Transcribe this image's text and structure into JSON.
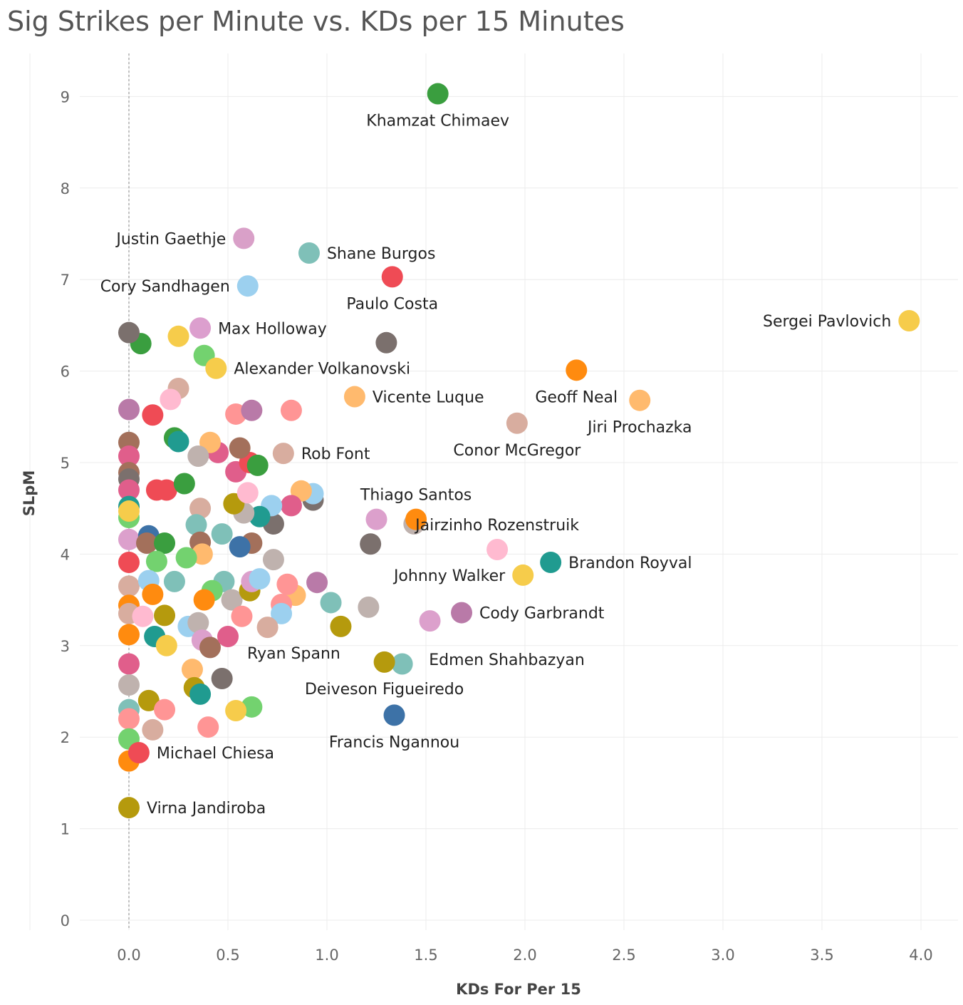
{
  "chart_data": {
    "type": "scatter",
    "title": "Sig Strikes per Minute vs. KDs per 15 Minutes",
    "xlabel": "KDs For Per 15",
    "ylabel": "SLpM",
    "xlim": [
      -0.25,
      4.2
    ],
    "ylim": [
      -0.1,
      9.6
    ],
    "xticks": [
      "0.0",
      "0.5",
      "1.0",
      "1.5",
      "2.0",
      "2.5",
      "3.0",
      "3.5",
      "4.0"
    ],
    "xtick_values": [
      0,
      0.5,
      1.0,
      1.5,
      2.0,
      2.5,
      3.0,
      3.5,
      4.0
    ],
    "yticks": [
      "0",
      "1",
      "2",
      "3",
      "4",
      "5",
      "6",
      "7",
      "8",
      "9"
    ],
    "ytick_values": [
      0,
      1,
      2,
      3,
      4,
      5,
      6,
      7,
      8,
      9
    ],
    "grid": true,
    "reference_line_x": 0,
    "points": [
      {
        "x": 1.56,
        "y": 9.03,
        "color": "#3a9e3f",
        "label": "Khamzat Chimaev",
        "pos": "below"
      },
      {
        "x": 0.58,
        "y": 7.45,
        "color": "#d9a0c8",
        "label": "Justin Gaethje",
        "pos": "left"
      },
      {
        "x": 0.91,
        "y": 7.29,
        "color": "#7fc0b8",
        "label": "Shane Burgos",
        "pos": "right"
      },
      {
        "x": 1.33,
        "y": 7.03,
        "color": "#ef4b55",
        "label": "Paulo Costa",
        "pos": "below"
      },
      {
        "x": 0.6,
        "y": 6.93,
        "color": "#9cd0ef",
        "label": "Cory Sandhagen",
        "pos": "left"
      },
      {
        "x": 3.94,
        "y": 6.55,
        "color": "#f6cc4b",
        "label": "Sergei Pavlovich",
        "pos": "left"
      },
      {
        "x": 0.36,
        "y": 6.47,
        "color": "#dc9fce",
        "label": "Max Holloway",
        "pos": "right"
      },
      {
        "x": 0.44,
        "y": 6.03,
        "color": "#f6cc4b",
        "label": "Alexander Volkanovski",
        "pos": "right"
      },
      {
        "x": 2.26,
        "y": 6.01,
        "color": "#ff8b0f",
        "label": "Geoff Neal",
        "pos": "below"
      },
      {
        "x": 1.14,
        "y": 5.72,
        "color": "#ffba6e",
        "label": "Vicente Luque",
        "pos": "right"
      },
      {
        "x": 2.58,
        "y": 5.68,
        "color": "#ffba6e",
        "label": "Jiri Prochazka",
        "pos": "below"
      },
      {
        "x": 1.96,
        "y": 5.43,
        "color": "#d8ad9f",
        "label": "Conor McGregor",
        "pos": "below"
      },
      {
        "x": 0.78,
        "y": 5.1,
        "color": "#d8ad9f",
        "label": "Rob Font",
        "pos": "right"
      },
      {
        "x": 1.45,
        "y": 4.38,
        "color": "#ff8b0f",
        "label": "Thiago Santos",
        "pos": "above"
      },
      {
        "x": 1.86,
        "y": 4.05,
        "color": "#ffbad0",
        "label": "Jairzinho Rozenstruik",
        "pos": "above"
      },
      {
        "x": 2.13,
        "y": 3.91,
        "color": "#209b90",
        "label": "Brandon Royval",
        "pos": "right"
      },
      {
        "x": 1.99,
        "y": 3.77,
        "color": "#f6cc4b",
        "label": "Johnny Walker",
        "pos": "left"
      },
      {
        "x": 1.68,
        "y": 3.36,
        "color": "#b97aa8",
        "label": "Cody Garbrandt",
        "pos": "right"
      },
      {
        "x": 1.52,
        "y": 3.27,
        "color": "#dca0cc",
        "label": "Edmen Shahbazyan",
        "pos": "belowright"
      },
      {
        "x": 1.38,
        "y": 2.8,
        "color": "#7fc0b8",
        "label": "",
        "pos": ""
      },
      {
        "x": 1.29,
        "y": 2.82,
        "color": "#b59a0d",
        "label": "Deiveson Figueiredo",
        "pos": "below"
      },
      {
        "x": 1.34,
        "y": 2.24,
        "color": "#3d72a7",
        "label": "Francis Ngannou",
        "pos": "below"
      },
      {
        "x": 1.07,
        "y": 3.21,
        "color": "#b59a0d",
        "label": "Ryan Spann",
        "pos": "belowleft"
      },
      {
        "x": 0.05,
        "y": 1.83,
        "color": "#ef4b55",
        "label": "Michael Chiesa",
        "pos": "right"
      },
      {
        "x": 0.0,
        "y": 1.74,
        "color": "#ff8b0f",
        "label": "",
        "pos": ""
      },
      {
        "x": 0.0,
        "y": 1.23,
        "color": "#b59a0d",
        "label": "Virna Jandiroba",
        "pos": "right"
      },
      {
        "x": 1.3,
        "y": 6.31,
        "color": "#7b706d",
        "label": "",
        "pos": ""
      },
      {
        "x": 1.22,
        "y": 4.11,
        "color": "#7b706d",
        "label": "",
        "pos": ""
      },
      {
        "x": 1.25,
        "y": 4.38,
        "color": "#dca0cc",
        "label": "",
        "pos": ""
      },
      {
        "x": 1.44,
        "y": 4.33,
        "color": "#bfb2ae",
        "label": "",
        "pos": ""
      },
      {
        "x": 1.21,
        "y": 3.42,
        "color": "#bfb2ae",
        "label": "",
        "pos": ""
      },
      {
        "x": 1.02,
        "y": 3.47,
        "color": "#7fc0b8",
        "label": "",
        "pos": ""
      },
      {
        "x": 0.95,
        "y": 3.69,
        "color": "#b97aa8",
        "label": "",
        "pos": ""
      },
      {
        "x": 0.93,
        "y": 4.59,
        "color": "#7b706d",
        "label": "",
        "pos": ""
      },
      {
        "x": 0.93,
        "y": 4.66,
        "color": "#9cd0ef",
        "label": "",
        "pos": ""
      },
      {
        "x": 0.87,
        "y": 4.69,
        "color": "#ffba6e",
        "label": "",
        "pos": ""
      },
      {
        "x": 0.82,
        "y": 4.53,
        "color": "#e05e8b",
        "label": "",
        "pos": ""
      },
      {
        "x": 0.82,
        "y": 5.57,
        "color": "#ff9595",
        "label": "",
        "pos": ""
      },
      {
        "x": 0.84,
        "y": 3.55,
        "color": "#ffba6e",
        "label": "",
        "pos": ""
      },
      {
        "x": 0.8,
        "y": 3.67,
        "color": "#ff9595",
        "label": "",
        "pos": ""
      },
      {
        "x": 0.77,
        "y": 3.45,
        "color": "#ff9595",
        "label": "",
        "pos": ""
      },
      {
        "x": 0.77,
        "y": 3.35,
        "color": "#9cd0ef",
        "label": "",
        "pos": ""
      },
      {
        "x": 0.7,
        "y": 3.2,
        "color": "#d8ad9f",
        "label": "",
        "pos": ""
      },
      {
        "x": 0.73,
        "y": 3.94,
        "color": "#bfb2ae",
        "label": "",
        "pos": ""
      },
      {
        "x": 0.73,
        "y": 4.33,
        "color": "#7b706d",
        "label": "",
        "pos": ""
      },
      {
        "x": 0.72,
        "y": 4.53,
        "color": "#9cd0ef",
        "label": "",
        "pos": ""
      },
      {
        "x": 0.66,
        "y": 4.41,
        "color": "#209b90",
        "label": "",
        "pos": ""
      },
      {
        "x": 0.62,
        "y": 4.12,
        "color": "#a3705b",
        "label": "",
        "pos": ""
      },
      {
        "x": 0.58,
        "y": 4.45,
        "color": "#bfb2ae",
        "label": "",
        "pos": ""
      },
      {
        "x": 0.56,
        "y": 4.08,
        "color": "#3d72a7",
        "label": "",
        "pos": ""
      },
      {
        "x": 0.53,
        "y": 4.55,
        "color": "#b59a0d",
        "label": "",
        "pos": ""
      },
      {
        "x": 0.6,
        "y": 4.67,
        "color": "#ffbad0",
        "label": "",
        "pos": ""
      },
      {
        "x": 0.54,
        "y": 4.9,
        "color": "#e05e8b",
        "label": "",
        "pos": ""
      },
      {
        "x": 0.61,
        "y": 5.0,
        "color": "#ef4b55",
        "label": "",
        "pos": ""
      },
      {
        "x": 0.65,
        "y": 4.97,
        "color": "#3a9e3f",
        "label": "",
        "pos": ""
      },
      {
        "x": 0.56,
        "y": 5.16,
        "color": "#a3705b",
        "label": "",
        "pos": ""
      },
      {
        "x": 0.54,
        "y": 5.53,
        "color": "#ff9595",
        "label": "",
        "pos": ""
      },
      {
        "x": 0.62,
        "y": 5.57,
        "color": "#b97aa8",
        "label": "",
        "pos": ""
      },
      {
        "x": 0.45,
        "y": 5.11,
        "color": "#e05e8b",
        "label": "",
        "pos": ""
      },
      {
        "x": 0.41,
        "y": 5.22,
        "color": "#ffba6e",
        "label": "",
        "pos": ""
      },
      {
        "x": 0.35,
        "y": 5.07,
        "color": "#bfb2ae",
        "label": "",
        "pos": ""
      },
      {
        "x": 0.38,
        "y": 6.17,
        "color": "#73d26f",
        "label": "",
        "pos": ""
      },
      {
        "x": 0.25,
        "y": 6.38,
        "color": "#f6cc4b",
        "label": "",
        "pos": ""
      },
      {
        "x": 0.25,
        "y": 5.81,
        "color": "#d8ad9f",
        "label": "",
        "pos": ""
      },
      {
        "x": 0.21,
        "y": 5.69,
        "color": "#ffbad0",
        "label": "",
        "pos": ""
      },
      {
        "x": 0.23,
        "y": 5.27,
        "color": "#3a9e3f",
        "label": "",
        "pos": ""
      },
      {
        "x": 0.25,
        "y": 5.23,
        "color": "#209b90",
        "label": "",
        "pos": ""
      },
      {
        "x": 0.12,
        "y": 5.52,
        "color": "#ef4b55",
        "label": "",
        "pos": ""
      },
      {
        "x": 0.06,
        "y": 6.3,
        "color": "#3a9e3f",
        "label": "",
        "pos": ""
      },
      {
        "x": 0.0,
        "y": 6.42,
        "color": "#7b706d",
        "label": "",
        "pos": ""
      },
      {
        "x": 0.0,
        "y": 5.58,
        "color": "#b97aa8",
        "label": "",
        "pos": ""
      },
      {
        "x": 0.0,
        "y": 5.22,
        "color": "#a3705b",
        "label": "",
        "pos": ""
      },
      {
        "x": 0.0,
        "y": 5.07,
        "color": "#e05e8b",
        "label": "",
        "pos": ""
      },
      {
        "x": 0.0,
        "y": 4.89,
        "color": "#a3705b",
        "label": "",
        "pos": ""
      },
      {
        "x": 0.0,
        "y": 4.82,
        "color": "#7b706d",
        "label": "",
        "pos": ""
      },
      {
        "x": 0.0,
        "y": 4.7,
        "color": "#e05e8b",
        "label": "",
        "pos": ""
      },
      {
        "x": 0.0,
        "y": 4.52,
        "color": "#209b90",
        "label": "",
        "pos": ""
      },
      {
        "x": 0.0,
        "y": 4.4,
        "color": "#73d26f",
        "label": "",
        "pos": ""
      },
      {
        "x": 0.0,
        "y": 4.47,
        "color": "#f6cc4b",
        "label": "",
        "pos": ""
      },
      {
        "x": 0.0,
        "y": 4.16,
        "color": "#dca0cc",
        "label": "",
        "pos": ""
      },
      {
        "x": 0.0,
        "y": 3.91,
        "color": "#ef4b55",
        "label": "",
        "pos": ""
      },
      {
        "x": 0.0,
        "y": 3.65,
        "color": "#d8ad9f",
        "label": "",
        "pos": ""
      },
      {
        "x": 0.0,
        "y": 3.44,
        "color": "#ff8b0f",
        "label": "",
        "pos": ""
      },
      {
        "x": 0.0,
        "y": 3.35,
        "color": "#d8ad9f",
        "label": "",
        "pos": ""
      },
      {
        "x": 0.0,
        "y": 3.12,
        "color": "#ff8b0f",
        "label": "",
        "pos": ""
      },
      {
        "x": 0.0,
        "y": 2.8,
        "color": "#e05e8b",
        "label": "",
        "pos": ""
      },
      {
        "x": 0.0,
        "y": 2.57,
        "color": "#bfb2ae",
        "label": "",
        "pos": ""
      },
      {
        "x": 0.0,
        "y": 2.3,
        "color": "#7fc0b8",
        "label": "",
        "pos": ""
      },
      {
        "x": 0.0,
        "y": 2.2,
        "color": "#ff9595",
        "label": "",
        "pos": ""
      },
      {
        "x": 0.0,
        "y": 1.98,
        "color": "#73d26f",
        "label": "",
        "pos": ""
      },
      {
        "x": 0.1,
        "y": 4.2,
        "color": "#3d72a7",
        "label": "",
        "pos": ""
      },
      {
        "x": 0.09,
        "y": 4.12,
        "color": "#a3705b",
        "label": "",
        "pos": ""
      },
      {
        "x": 0.18,
        "y": 4.12,
        "color": "#3a9e3f",
        "label": "",
        "pos": ""
      },
      {
        "x": 0.14,
        "y": 3.92,
        "color": "#73d26f",
        "label": "",
        "pos": ""
      },
      {
        "x": 0.1,
        "y": 3.71,
        "color": "#9cd0ef",
        "label": "",
        "pos": ""
      },
      {
        "x": 0.19,
        "y": 4.7,
        "color": "#ef4b55",
        "label": "",
        "pos": ""
      },
      {
        "x": 0.14,
        "y": 4.7,
        "color": "#ef4b55",
        "label": "",
        "pos": ""
      },
      {
        "x": 0.28,
        "y": 4.77,
        "color": "#3a9e3f",
        "label": "",
        "pos": ""
      },
      {
        "x": 0.36,
        "y": 4.5,
        "color": "#d8ad9f",
        "label": "",
        "pos": ""
      },
      {
        "x": 0.34,
        "y": 4.32,
        "color": "#7fc0b8",
        "label": "",
        "pos": ""
      },
      {
        "x": 0.36,
        "y": 4.13,
        "color": "#a3705b",
        "label": "",
        "pos": ""
      },
      {
        "x": 0.37,
        "y": 4.0,
        "color": "#ffba6e",
        "label": "",
        "pos": ""
      },
      {
        "x": 0.29,
        "y": 3.96,
        "color": "#73d26f",
        "label": "",
        "pos": ""
      },
      {
        "x": 0.23,
        "y": 3.7,
        "color": "#7fc0b8",
        "label": "",
        "pos": ""
      },
      {
        "x": 0.47,
        "y": 4.22,
        "color": "#7fc0b8",
        "label": "",
        "pos": ""
      },
      {
        "x": 0.48,
        "y": 3.7,
        "color": "#7fc0b8",
        "label": "",
        "pos": ""
      },
      {
        "x": 0.42,
        "y": 3.6,
        "color": "#73d26f",
        "label": "",
        "pos": ""
      },
      {
        "x": 0.38,
        "y": 3.5,
        "color": "#ff8b0f",
        "label": "",
        "pos": ""
      },
      {
        "x": 0.52,
        "y": 3.5,
        "color": "#bfb2ae",
        "label": "",
        "pos": ""
      },
      {
        "x": 0.61,
        "y": 3.6,
        "color": "#b59a0d",
        "label": "",
        "pos": ""
      },
      {
        "x": 0.62,
        "y": 3.7,
        "color": "#dca0cc",
        "label": "",
        "pos": ""
      },
      {
        "x": 0.66,
        "y": 3.73,
        "color": "#9cd0ef",
        "label": "",
        "pos": ""
      },
      {
        "x": 0.57,
        "y": 3.32,
        "color": "#ff9595",
        "label": "",
        "pos": ""
      },
      {
        "x": 0.12,
        "y": 3.56,
        "color": "#ff8b0f",
        "label": "",
        "pos": ""
      },
      {
        "x": 0.07,
        "y": 3.32,
        "color": "#ffbad0",
        "label": "",
        "pos": ""
      },
      {
        "x": 0.18,
        "y": 3.33,
        "color": "#b59a0d",
        "label": "",
        "pos": ""
      },
      {
        "x": 0.13,
        "y": 3.1,
        "color": "#209b90",
        "label": "",
        "pos": ""
      },
      {
        "x": 0.19,
        "y": 3.0,
        "color": "#f6cc4b",
        "label": "",
        "pos": ""
      },
      {
        "x": 0.3,
        "y": 3.21,
        "color": "#9cd0ef",
        "label": "",
        "pos": ""
      },
      {
        "x": 0.35,
        "y": 3.25,
        "color": "#bfb2ae",
        "label": "",
        "pos": ""
      },
      {
        "x": 0.37,
        "y": 3.06,
        "color": "#dca0cc",
        "label": "",
        "pos": ""
      },
      {
        "x": 0.41,
        "y": 2.98,
        "color": "#a3705b",
        "label": "",
        "pos": ""
      },
      {
        "x": 0.5,
        "y": 3.1,
        "color": "#e05e8b",
        "label": "",
        "pos": ""
      },
      {
        "x": 0.32,
        "y": 2.74,
        "color": "#ffba6e",
        "label": "",
        "pos": ""
      },
      {
        "x": 0.33,
        "y": 2.54,
        "color": "#b59a0d",
        "label": "",
        "pos": ""
      },
      {
        "x": 0.36,
        "y": 2.47,
        "color": "#209b90",
        "label": "",
        "pos": ""
      },
      {
        "x": 0.47,
        "y": 2.64,
        "color": "#7b706d",
        "label": "",
        "pos": ""
      },
      {
        "x": 0.62,
        "y": 2.33,
        "color": "#73d26f",
        "label": "",
        "pos": ""
      },
      {
        "x": 0.54,
        "y": 2.29,
        "color": "#f6cc4b",
        "label": "",
        "pos": ""
      },
      {
        "x": 0.1,
        "y": 2.4,
        "color": "#b59a0d",
        "label": "",
        "pos": ""
      },
      {
        "x": 0.18,
        "y": 2.3,
        "color": "#ff9595",
        "label": "",
        "pos": ""
      },
      {
        "x": 0.4,
        "y": 2.11,
        "color": "#ff9595",
        "label": "",
        "pos": ""
      },
      {
        "x": 0.12,
        "y": 2.08,
        "color": "#d8ad9f",
        "label": "",
        "pos": ""
      }
    ]
  }
}
